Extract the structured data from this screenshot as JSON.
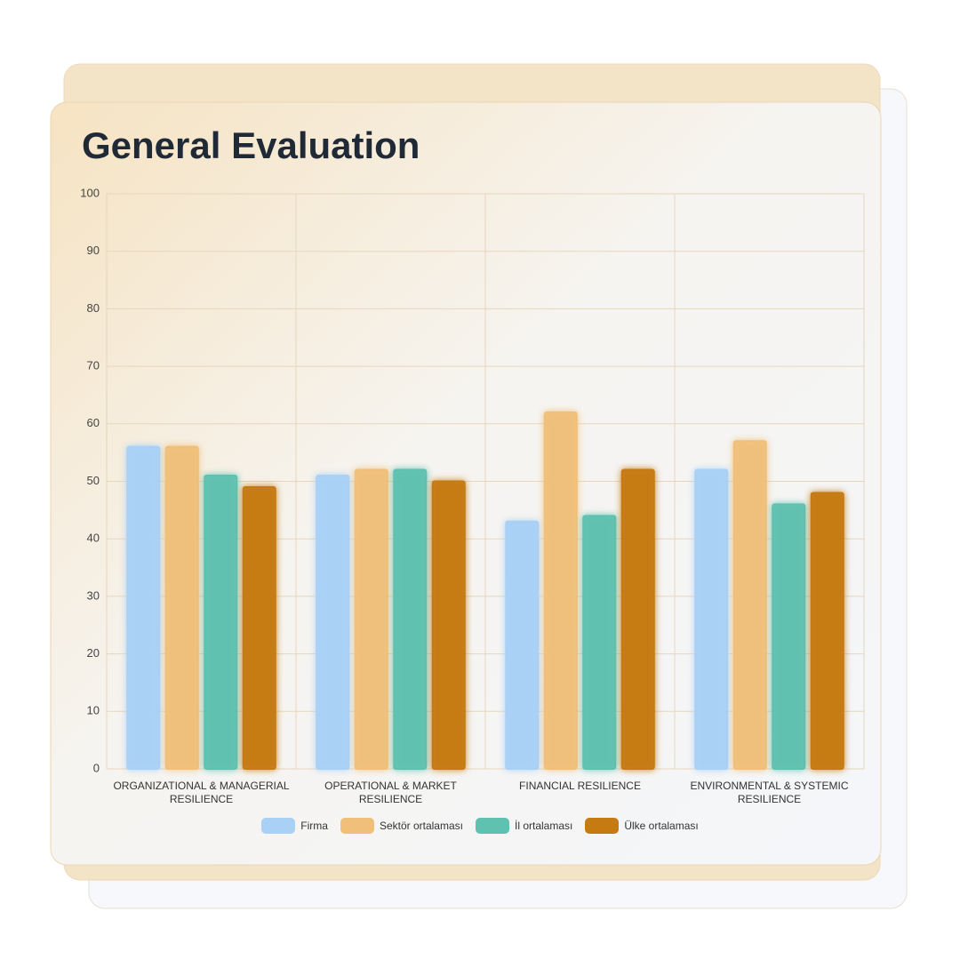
{
  "chart_data": {
    "type": "bar",
    "title": "General Evaluation",
    "categories": [
      "ORGANIZATIONAL & MANAGERIAL RESILIENCE",
      "OPERATIONAL & MARKET RESILIENCE",
      "FINANCIAL RESILIENCE",
      "ENVIRONMENTAL & SYSTEMIC RESILIENCE"
    ],
    "series": [
      {
        "name": "Firma",
        "color": "#a9d0f5",
        "values": [
          56,
          51,
          43,
          52
        ]
      },
      {
        "name": "Sektör ortalaması",
        "color": "#f0c07a",
        "values": [
          56,
          52,
          62,
          57
        ]
      },
      {
        "name": "İl ortalaması",
        "color": "#5fc1b0",
        "values": [
          51,
          52,
          44,
          46
        ]
      },
      {
        "name": "Ülke ortalaması",
        "color": "#c57a12",
        "values": [
          49,
          50,
          52,
          48
        ]
      }
    ],
    "ylim": [
      0,
      100
    ],
    "yticks": [
      0,
      10,
      20,
      30,
      40,
      50,
      60,
      70,
      80,
      90,
      100
    ],
    "grid": true,
    "legend": "bottom"
  }
}
